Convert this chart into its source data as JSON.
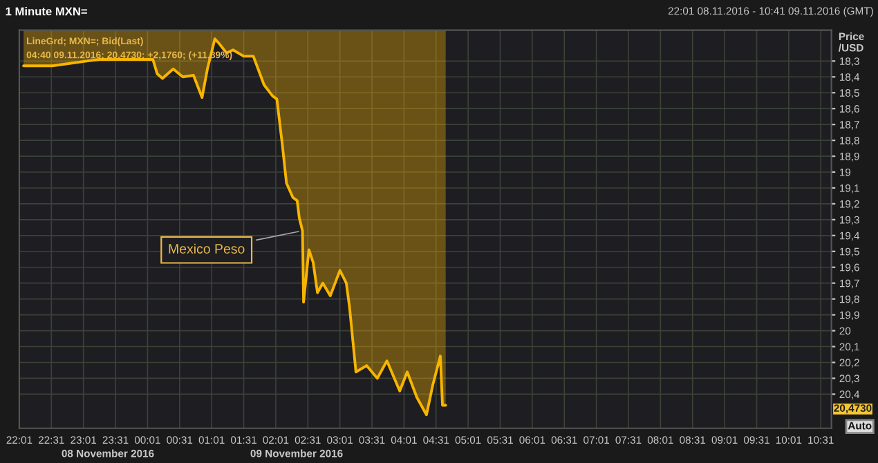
{
  "chart_data": {
    "type": "area",
    "title": "1 Minute MXN=",
    "subtitle": "22:01 08.11.2016 - 10:41 09.11.2016 (GMT)",
    "ylabel": "Price\n/USD",
    "annotations": [
      "LineGrd; MXN=; Bid(Last)",
      "04:40 09.11.2016; 20,4730; +2,1760; (+11,89%)",
      "08 November 2016",
      "09 November 2016",
      "Auto",
      "20,4730",
      {
        "text": "Mexico Peso",
        "x": "2016-11-09T02:26",
        "y": 19.37
      }
    ],
    "series": [
      {
        "color": "#f7b500",
        "x": [
          "2016-11-08T22:05",
          "2016-11-08T22:32",
          "2016-11-08T23:04",
          "2016-11-08T23:16",
          "2016-11-09T00:06",
          "2016-11-09T00:10",
          "2016-11-09T00:15",
          "2016-11-09T00:25",
          "2016-11-09T00:34",
          "2016-11-09T00:44",
          "2016-11-09T00:52",
          "2016-11-09T00:57",
          "2016-11-09T01:04",
          "2016-11-09T01:08",
          "2016-11-09T01:15",
          "2016-11-09T01:21",
          "2016-11-09T01:31",
          "2016-11-09T01:40",
          "2016-11-09T01:50",
          "2016-11-09T01:58",
          "2016-11-09T02:02",
          "2016-11-09T02:07",
          "2016-11-09T02:11",
          "2016-11-09T02:17",
          "2016-11-09T02:21",
          "2016-11-09T02:23",
          "2016-11-09T02:26",
          "2016-11-09T02:27",
          "2016-11-09T02:32",
          "2016-11-09T02:36",
          "2016-11-09T02:40",
          "2016-11-09T02:45",
          "2016-11-09T02:52",
          "2016-11-09T03:01",
          "2016-11-09T03:07",
          "2016-11-09T03:10",
          "2016-11-09T03:16",
          "2016-11-09T03:26",
          "2016-11-09T03:36",
          "2016-11-09T03:45",
          "2016-11-09T03:57",
          "2016-11-09T04:04",
          "2016-11-09T04:13",
          "2016-11-09T04:22",
          "2016-11-09T04:28",
          "2016-11-09T04:35",
          "2016-11-09T04:37",
          "2016-11-09T04:40"
        ],
        "values": [
          18.33,
          18.33,
          18.3,
          18.29,
          18.29,
          18.38,
          18.41,
          18.35,
          18.4,
          18.39,
          18.53,
          18.35,
          18.16,
          18.19,
          18.25,
          18.23,
          18.27,
          18.27,
          18.45,
          18.52,
          18.54,
          18.82,
          19.07,
          19.16,
          19.18,
          19.29,
          19.37,
          19.82,
          19.49,
          19.57,
          19.76,
          19.7,
          19.78,
          19.62,
          19.7,
          19.85,
          20.26,
          20.22,
          20.3,
          20.19,
          20.38,
          20.26,
          20.42,
          20.53,
          20.34,
          20.16,
          20.47,
          20.47
        ]
      }
    ],
    "xlim": [
      "2016-11-08T22:01",
      "2016-11-09T10:41"
    ],
    "ylim": [
      20.615,
      18.105
    ],
    "xticks": [
      {
        "value": "2016-11-08T22:01",
        "label": "22:01"
      },
      {
        "value": "2016-11-08T22:31",
        "label": "22:31"
      },
      {
        "value": "2016-11-08T23:01",
        "label": "23:01"
      },
      {
        "value": "2016-11-08T23:31",
        "label": "23:31"
      },
      {
        "value": "2016-11-09T00:01",
        "label": "00:01"
      },
      {
        "value": "2016-11-09T00:31",
        "label": "00:31"
      },
      {
        "value": "2016-11-09T01:01",
        "label": "01:01"
      },
      {
        "value": "2016-11-09T01:31",
        "label": "01:31"
      },
      {
        "value": "2016-11-09T02:01",
        "label": "02:01"
      },
      {
        "value": "2016-11-09T02:31",
        "label": "02:31"
      },
      {
        "value": "2016-11-09T03:01",
        "label": "03:01"
      },
      {
        "value": "2016-11-09T03:31",
        "label": "03:31"
      },
      {
        "value": "2016-11-09T04:01",
        "label": "04:01"
      },
      {
        "value": "2016-11-09T04:31",
        "label": "04:31"
      },
      {
        "value": "2016-11-09T05:01",
        "label": "05:01"
      },
      {
        "value": "2016-11-09T05:31",
        "label": "05:31"
      },
      {
        "value": "2016-11-09T06:01",
        "label": "06:01"
      },
      {
        "value": "2016-11-09T06:31",
        "label": "06:31"
      },
      {
        "value": "2016-11-09T07:01",
        "label": "07:01"
      },
      {
        "value": "2016-11-09T07:31",
        "label": "07:31"
      },
      {
        "value": "2016-11-09T08:01",
        "label": "08:01"
      },
      {
        "value": "2016-11-09T08:31",
        "label": "08:31"
      },
      {
        "value": "2016-11-09T09:01",
        "label": "09:01"
      },
      {
        "value": "2016-11-09T09:31",
        "label": "09:31"
      },
      {
        "value": "2016-11-09T10:01",
        "label": "10:01"
      },
      {
        "value": "2016-11-09T10:31",
        "label": "10:31"
      }
    ],
    "yticks": [
      {
        "value": 18.3,
        "label": "18,3"
      },
      {
        "value": 18.4,
        "label": "18,4"
      },
      {
        "value": 18.5,
        "label": "18,5"
      },
      {
        "value": 18.6,
        "label": "18,6"
      },
      {
        "value": 18.7,
        "label": "18,7"
      },
      {
        "value": 18.8,
        "label": "18,8"
      },
      {
        "value": 18.9,
        "label": "18,9"
      },
      19,
      {
        "value": 19.1,
        "label": "19,1"
      },
      {
        "value": 19.2,
        "label": "19,2"
      },
      {
        "value": 19.3,
        "label": "19,3"
      },
      {
        "value": 19.4,
        "label": "19,4"
      },
      {
        "value": 19.5,
        "label": "19,5"
      },
      {
        "value": 19.6,
        "label": "19,6"
      },
      {
        "value": 19.7,
        "label": "19,7"
      },
      {
        "value": 19.8,
        "label": "19,8"
      },
      {
        "value": 19.9,
        "label": "19,9"
      },
      20,
      {
        "value": 20.1,
        "label": "20,1"
      },
      {
        "value": 20.2,
        "label": "20,2"
      },
      {
        "value": 20.3,
        "label": "20,3"
      },
      {
        "value": 20.4,
        "label": "20,4"
      }
    ],
    "grid": true,
    "line_style": "solid"
  }
}
